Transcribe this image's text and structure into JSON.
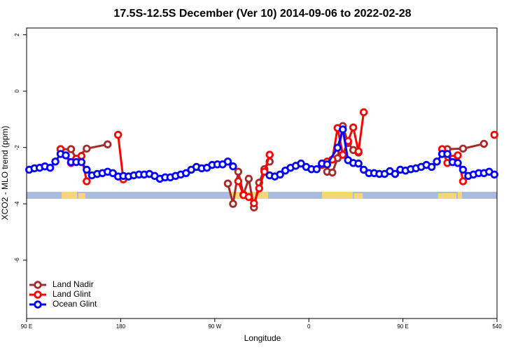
{
  "chart_data": {
    "type": "line",
    "title": "17.5S-12.5S December (Ver 10)   2014-09-06 to 2022-02-28",
    "x_label": "Longitude",
    "y_label": "XCO2 - MLO trend (ppm)",
    "xlim": [
      90,
      540
    ],
    "ylim": [
      -8.07,
      2.24
    ],
    "xticks": [
      {
        "value": 90,
        "label": "90 E"
      },
      180,
      {
        "value": 270,
        "label": "90 W"
      },
      {
        "value": 360,
        "label": "0"
      },
      {
        "value": 450,
        "label": "90 E"
      },
      540
    ],
    "yticks": [
      2,
      0,
      -2,
      -4,
      -6
    ],
    "legend": "bottom-left",
    "series": [
      {
        "name": "Land Nadir",
        "color": "#a52a2a",
        "x": [
          122.5,
          132.5,
          137.5,
          147.5,
          167.5,
          172.5,
          282.5,
          287.5,
          292.5,
          297.5,
          302.5,
          307.5,
          312.5,
          317.5,
          322.5,
          327.5,
          377.5,
          382.5,
          387.5,
          392.5,
          397.5,
          402.5,
          407.5,
          412.5,
          492.5,
          507.5,
          527.5
        ],
        "values": [
          -2.06,
          -2.06,
          -2.4,
          -2.04,
          -1.89,
          null,
          -3.28,
          -4.0,
          -2.86,
          -3.67,
          -3.11,
          -4.13,
          -3.25,
          -2.77,
          -2.5,
          null,
          -2.86,
          -2.89,
          -2.38,
          -1.24,
          -1.84,
          -2.09,
          -2.18,
          null,
          -2.06,
          -2.04,
          -1.87
        ]
      },
      {
        "name": "Land Glint",
        "color": "#ff0000",
        "x": [
          122.5,
          132.5,
          137.5,
          142.5,
          147.5,
          152.5,
          177.5,
          182.5,
          187.5,
          292.5,
          297.5,
          302.5,
          307.5,
          312.5,
          317.5,
          322.5,
          327.5,
          372.5,
          377.5,
          382.5,
          387.5,
          392.5,
          397.5,
          402.5,
          407.5,
          412.5,
          417.5,
          487.5,
          492.5,
          497.5,
          502.5,
          507.5,
          512.5,
          537.5
        ],
        "values": [
          -2.06,
          -2.55,
          -2.4,
          -2.3,
          -3.2,
          null,
          -1.55,
          -3.13,
          null,
          -3.2,
          -3.69,
          -3.76,
          -3.98,
          -3.45,
          -2.86,
          -2.26,
          null,
          -2.62,
          -2.5,
          -2.43,
          -1.31,
          -2.26,
          -1.77,
          -1.29,
          -2.14,
          -0.75,
          null,
          -2.06,
          -2.55,
          -2.4,
          -2.28,
          -3.2,
          null,
          -1.55
        ]
      },
      {
        "name": "Ocean Glint",
        "color": "#0000ff",
        "x": [
          92.5,
          97.5,
          102.5,
          107.5,
          112.5,
          117.5,
          122.5,
          127.5,
          132.5,
          137.5,
          142.5,
          147.5,
          152.5,
          157.5,
          162.5,
          167.5,
          172.5,
          177.5,
          182.5,
          187.5,
          192.5,
          197.5,
          202.5,
          207.5,
          212.5,
          217.5,
          222.5,
          227.5,
          232.5,
          237.5,
          242.5,
          247.5,
          252.5,
          257.5,
          262.5,
          267.5,
          272.5,
          277.5,
          282.5,
          287.5,
          292.5,
          322.5,
          327.5,
          332.5,
          337.5,
          342.5,
          347.5,
          352.5,
          357.5,
          362.5,
          367.5,
          372.5,
          377.5,
          387.5,
          392.5,
          397.5,
          402.5,
          407.5,
          412.5,
          417.5,
          422.5,
          427.5,
          432.5,
          437.5,
          442.5,
          447.5,
          452.5,
          457.5,
          462.5,
          467.5,
          472.5,
          477.5,
          482.5,
          487.5,
          492.5,
          497.5,
          502.5,
          507.5,
          512.5,
          517.5,
          522.5,
          527.5,
          532.5,
          537.5
        ],
        "values": [
          -2.79,
          -2.74,
          -2.72,
          -2.67,
          -2.72,
          -2.5,
          -2.23,
          -2.28,
          -2.52,
          -2.52,
          -2.52,
          -2.79,
          -2.99,
          -2.94,
          -2.91,
          -2.86,
          -2.91,
          -3.03,
          -3.01,
          -3.03,
          -2.99,
          -2.96,
          -2.96,
          -2.94,
          -3.01,
          -3.11,
          -3.06,
          -3.06,
          -3.01,
          -2.96,
          -2.91,
          -2.79,
          -2.69,
          -2.74,
          -2.72,
          -2.62,
          -2.6,
          -2.6,
          -2.5,
          -2.67,
          null,
          -2.99,
          -3.03,
          -2.96,
          -2.82,
          -2.72,
          -2.65,
          -2.57,
          -2.69,
          -2.77,
          -2.77,
          -2.57,
          -2.6,
          -2.01,
          -1.36,
          -2.45,
          -2.55,
          -2.57,
          -2.79,
          -2.91,
          -2.91,
          -2.94,
          -2.94,
          -2.84,
          -2.94,
          -2.79,
          -2.82,
          -2.77,
          -2.74,
          -2.69,
          -2.62,
          -2.69,
          -2.5,
          -2.23,
          -2.23,
          -2.52,
          -2.55,
          -2.79,
          -3.01,
          -2.96,
          -2.91,
          -2.91,
          -2.86,
          -2.96
        ]
      }
    ]
  }
}
